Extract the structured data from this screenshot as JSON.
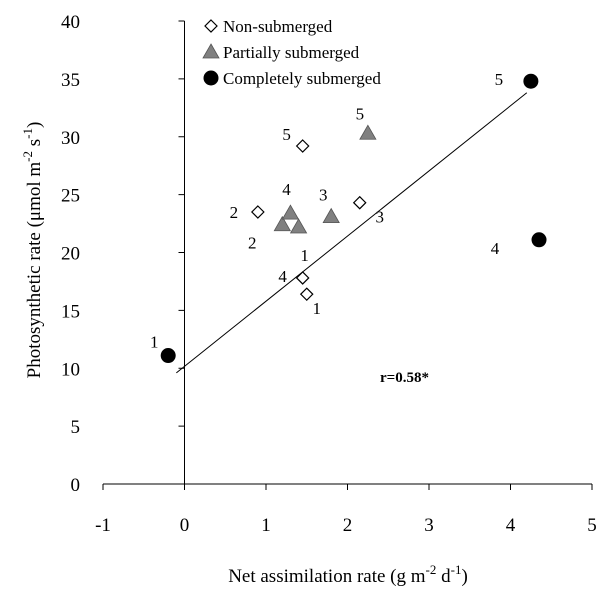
{
  "chart_data": {
    "type": "scatter",
    "xlim": [
      -1,
      5
    ],
    "ylim": [
      0,
      40
    ],
    "x_ticks": [
      "-1",
      "0",
      "1",
      "2",
      "3",
      "4",
      "5"
    ],
    "y_ticks": [
      "0",
      "5",
      "10",
      "15",
      "20",
      "25",
      "30",
      "35",
      "40"
    ],
    "xlabel": "Net assimilation rate (g m",
    "xlabel_sup1": "-2",
    "xlabel_mid": " d",
    "xlabel_sup2": "-1",
    "xlabel_end": ")",
    "ylabel": "Photosynthetic rate (μmol m",
    "ylabel_sup1": "-2",
    "ylabel_mid": " s",
    "ylabel_sup2": "-1",
    "ylabel_end": ")",
    "annotation": "r=0.58*",
    "trendline": {
      "x": [
        -0.1,
        4.2
      ],
      "y": [
        9.6,
        33.8
      ]
    },
    "legend": {
      "placement": "top"
    },
    "series": [
      {
        "name": "Non-submerged",
        "marker": "diamond-open",
        "color": "#000000",
        "points": [
          {
            "x": 1.5,
            "y": 16.4,
            "label": "1"
          },
          {
            "x": 0.9,
            "y": 23.5,
            "label": "2"
          },
          {
            "x": 2.15,
            "y": 24.3,
            "label": "3"
          },
          {
            "x": 1.45,
            "y": 17.8,
            "label": "4"
          },
          {
            "x": 1.45,
            "y": 29.2,
            "label": "5"
          }
        ]
      },
      {
        "name": "Partially submerged",
        "marker": "triangle-filled",
        "color": "#808080",
        "points": [
          {
            "x": 1.4,
            "y": 22.2,
            "label": "1"
          },
          {
            "x": 1.2,
            "y": 22.4,
            "label": "2"
          },
          {
            "x": 1.8,
            "y": 23.1,
            "label": "3"
          },
          {
            "x": 1.3,
            "y": 23.4,
            "label": "4"
          },
          {
            "x": 2.25,
            "y": 30.3,
            "label": "5"
          }
        ]
      },
      {
        "name": "Completely submerged",
        "marker": "circle-filled",
        "color": "#000000",
        "points": [
          {
            "x": -0.2,
            "y": 11.1,
            "label": "1"
          },
          {
            "x": 4.35,
            "y": 21.1,
            "label": "4"
          },
          {
            "x": 4.25,
            "y": 34.8,
            "label": "5"
          }
        ]
      }
    ]
  }
}
